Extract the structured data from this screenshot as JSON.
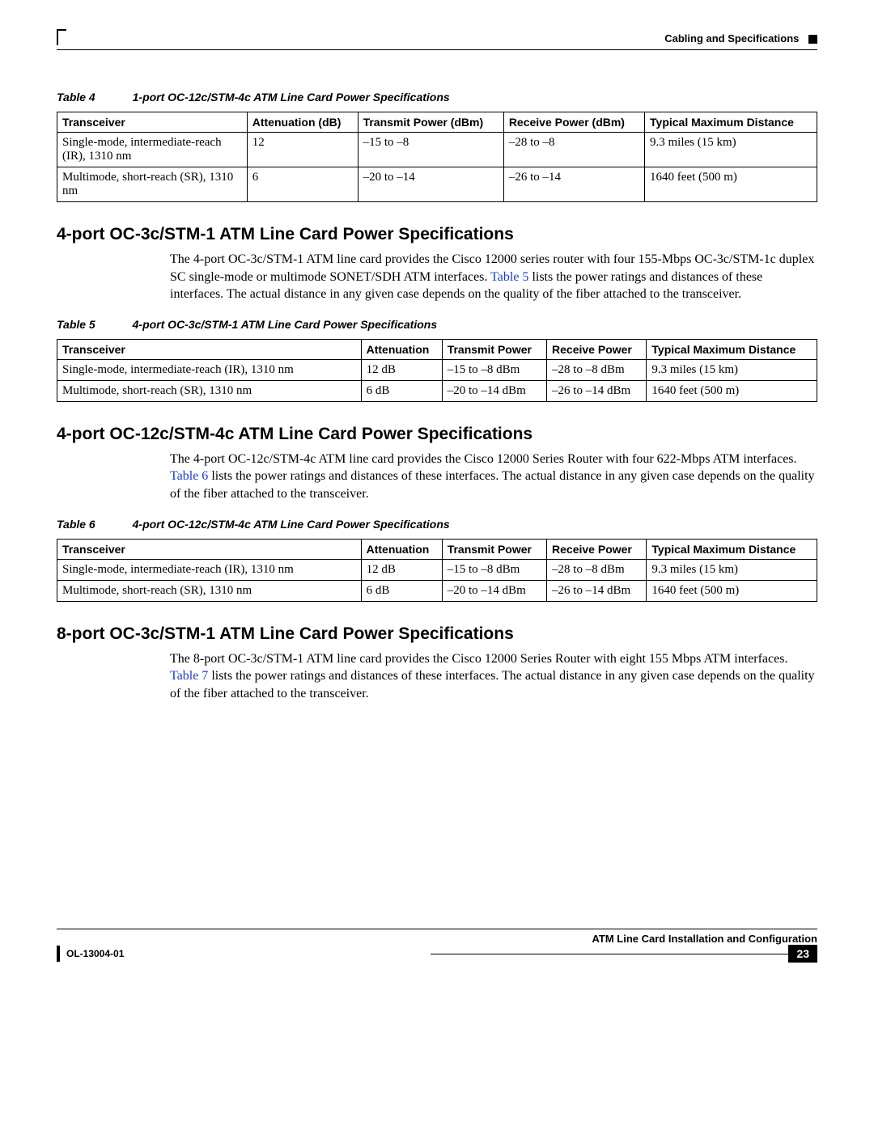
{
  "header": {
    "running_title": "Cabling and Specifications"
  },
  "table4": {
    "caption_label": "Table 4",
    "caption_title": "1-port OC-12c/STM-4c ATM Line Card Power Specifications",
    "columns": [
      "Transceiver",
      "Attenuation (dB)",
      "Transmit Power (dBm)",
      "Receive Power (dBm)",
      "Typical Maximum Distance"
    ],
    "rows": [
      [
        "Single-mode, intermediate-reach (IR), 1310 nm",
        "12",
        "–15 to –8",
        "–28 to –8",
        "9.3 miles (15 km)"
      ],
      [
        "Multimode, short-reach (SR), 1310 nm",
        "6",
        "–20 to –14",
        "–26 to –14",
        "1640 feet (500 m)"
      ]
    ]
  },
  "section5": {
    "heading": "4-port OC-3c/STM-1 ATM Line Card Power Specifications",
    "para_a": "The 4-port OC-3c/STM-1 ATM line card provides the Cisco 12000 series router with four 155-Mbps OC-3c/STM-1c duplex SC single-mode or multimode SONET/SDH ATM interfaces. ",
    "para_link": "Table 5",
    "para_b": " lists the power ratings and distances of these interfaces. The actual distance in any given case depends on the quality of the fiber attached to the transceiver."
  },
  "table5": {
    "caption_label": "Table 5",
    "caption_title": "4-port OC-3c/STM-1 ATM Line Card Power Specifications",
    "columns": [
      "Transceiver",
      "Attenuation",
      "Transmit Power",
      "Receive Power",
      "Typical Maximum Distance"
    ],
    "rows": [
      [
        "Single-mode, intermediate-reach (IR), 1310 nm",
        "12 dB",
        "–15 to –8 dBm",
        "–28 to –8 dBm",
        "9.3 miles (15 km)"
      ],
      [
        "Multimode, short-reach (SR), 1310 nm",
        "6 dB",
        "–20 to –14 dBm",
        "–26 to –14 dBm",
        "1640 feet (500 m)"
      ]
    ]
  },
  "section6": {
    "heading": "4-port OC-12c/STM-4c ATM Line Card Power Specifications",
    "para_a": "The 4-port OC-12c/STM-4c ATM line card provides the Cisco 12000 Series Router with four 622-Mbps ATM interfaces. ",
    "para_link": "Table 6",
    "para_b": " lists the power ratings and distances of these interfaces. The actual distance in any given case depends on the quality of the fiber attached to the transceiver."
  },
  "table6": {
    "caption_label": "Table 6",
    "caption_title": "4-port OC-12c/STM-4c ATM Line Card Power Specifications",
    "columns": [
      "Transceiver",
      "Attenuation",
      "Transmit Power",
      "Receive Power",
      "Typical Maximum Distance"
    ],
    "rows": [
      [
        "Single-mode, intermediate-reach (IR), 1310 nm",
        "12 dB",
        "–15 to –8 dBm",
        "–28 to –8 dBm",
        "9.3 miles (15 km)"
      ],
      [
        "Multimode, short-reach (SR), 1310 nm",
        "6 dB",
        "–20 to –14 dBm",
        "–26 to –14 dBm",
        "1640 feet (500 m)"
      ]
    ]
  },
  "section7": {
    "heading": "8-port OC-3c/STM-1 ATM Line Card Power Specifications",
    "para_a": "The 8-port OC-3c/STM-1 ATM line card provides the Cisco 12000 Series Router with eight 155 Mbps ATM interfaces. ",
    "para_link": "Table 7",
    "para_b": " lists the power ratings and distances of these interfaces. The actual distance in any given case depends on the quality of the fiber attached to the transceiver."
  },
  "footer": {
    "doc_title": "ATM Line Card Installation and Configuration",
    "doc_number": "OL-13004-01",
    "page_number": "23"
  }
}
